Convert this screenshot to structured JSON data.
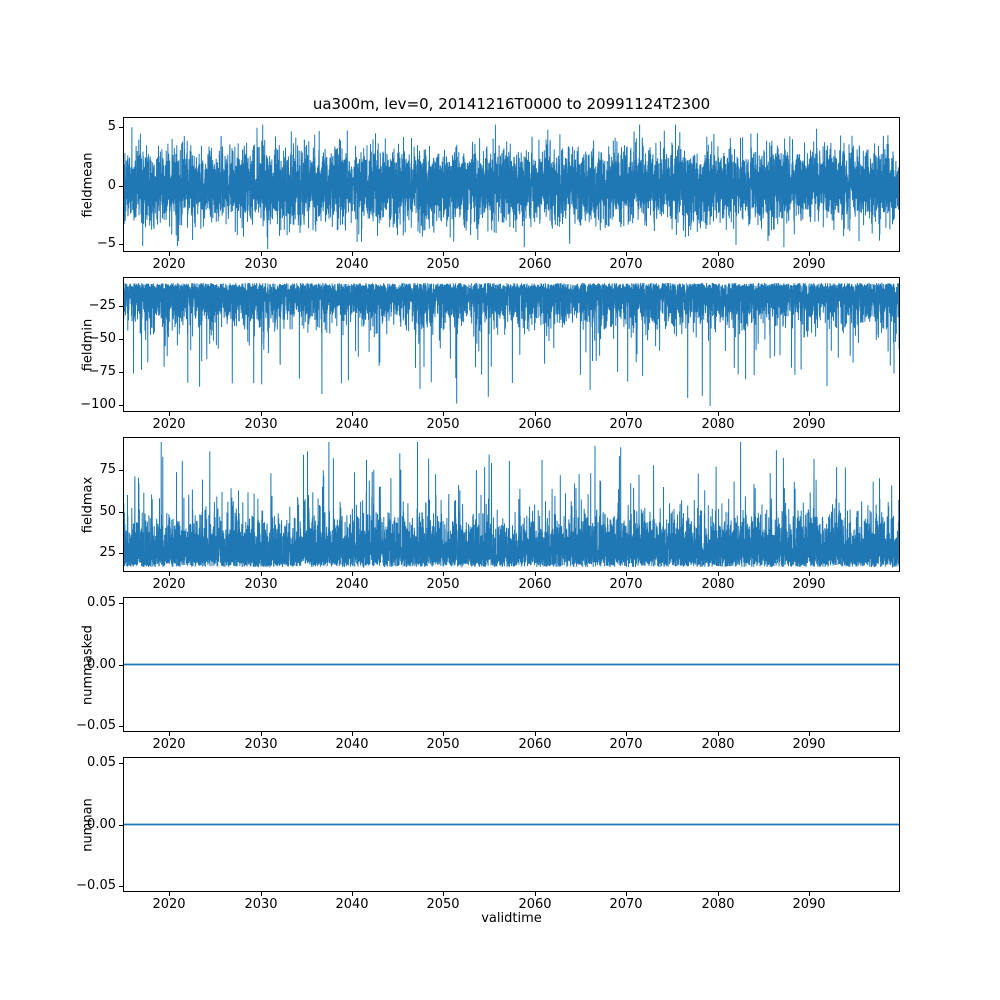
{
  "title": "ua300m, lev=0, 20141216T0000 to 20991124T2300",
  "xlabel": "validtime",
  "line_color": "#1f77b4",
  "axis_color": "#000000",
  "background_color": "#ffffff",
  "x_axis": {
    "label": "validtime",
    "range": [
      2014.96,
      2099.92
    ],
    "tick_values": [
      2020,
      2030,
      2040,
      2050,
      2060,
      2070,
      2080,
      2090
    ],
    "tick_labels": [
      "2020",
      "2030",
      "2040",
      "2050",
      "2060",
      "2070",
      "2080",
      "2090"
    ]
  },
  "chart_data": [
    {
      "type": "line",
      "name": "fieldmean",
      "ylabel": "fieldmean",
      "ylim": [
        -5.7,
        5.9
      ],
      "ytick_values": [
        5,
        0,
        -5
      ],
      "ytick_labels": [
        "5",
        "0",
        "−5"
      ],
      "summary": "Dense high-frequency noise centred on 0; typical band about ±3 with extremes near −5.5 and +5.3 across 2015–2099.",
      "gen": {
        "kind": "gaussian",
        "mean": 0,
        "std": 1.55,
        "spike_prob": 0.02,
        "spike_extra": 2.2,
        "clip": [
          -5.55,
          5.25
        ],
        "points": 8000,
        "seed": 101
      }
    },
    {
      "type": "line",
      "name": "fieldmin",
      "ylabel": "fieldmin",
      "ylim": [
        -105,
        -3.5
      ],
      "ytick_values": [
        -25,
        -50,
        -75,
        -100
      ],
      "ytick_labels": [
        "−25",
        "−50",
        "−75",
        "−100"
      ],
      "summary": "Noise hugging a ceiling near −8 with a dense band down to about −40 and recurrent downward spikes reaching −60 to −100.",
      "gen": {
        "kind": "one-sided",
        "base": -8,
        "sign": -1,
        "std": 14,
        "spike_prob": 0.02,
        "spike_min": 12,
        "spike_extra": 55,
        "clip": [
          -100.5,
          -8
        ],
        "points": 8000,
        "seed": 202
      }
    },
    {
      "type": "line",
      "name": "fieldmax",
      "ylabel": "fieldmax",
      "ylim": [
        13.5,
        95
      ],
      "ytick_values": [
        75,
        50,
        25
      ],
      "ytick_labels": [
        "75",
        "50",
        "25"
      ],
      "summary": "Noise hugging a floor near 16 with a dense band up to about 55 and recurrent upward spikes reaching 70 to 92.",
      "gen": {
        "kind": "one-sided",
        "base": 16.5,
        "sign": 1,
        "std": 14,
        "spike_prob": 0.02,
        "spike_min": 8,
        "spike_extra": 48,
        "clip": [
          16,
          92
        ],
        "points": 8000,
        "seed": 303
      }
    },
    {
      "type": "line",
      "name": "nummasked",
      "ylabel": "nummasked",
      "ylim": [
        -0.055,
        0.055
      ],
      "ytick_values": [
        0.05,
        0.0,
        -0.05
      ],
      "ytick_labels": [
        "0.05",
        "0.00",
        "−0.05"
      ],
      "summary": "Constant value 0 over the whole period 2015–2099.",
      "gen": {
        "kind": "flat",
        "value": 0,
        "points": 2,
        "seed": 1
      }
    },
    {
      "type": "line",
      "name": "numnan",
      "ylabel": "numnan",
      "ylim": [
        -0.055,
        0.055
      ],
      "ytick_values": [
        0.05,
        0.0,
        -0.05
      ],
      "ytick_labels": [
        "0.05",
        "0.00",
        "−0.05"
      ],
      "summary": "Constant value 0 over the whole period 2015–2099.",
      "gen": {
        "kind": "flat",
        "value": 0,
        "points": 2,
        "seed": 2
      }
    }
  ]
}
